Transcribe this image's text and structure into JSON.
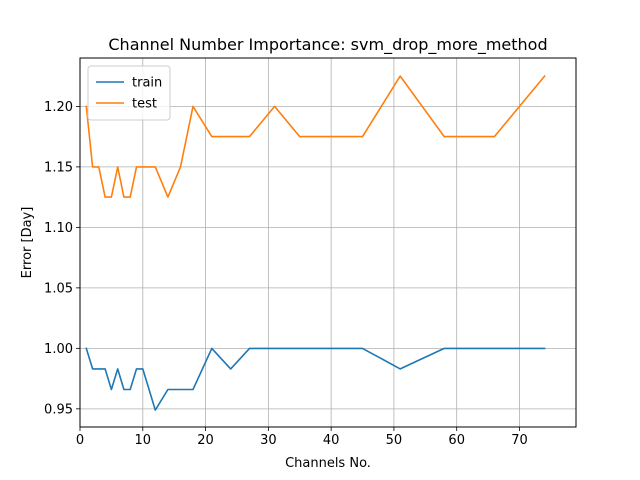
{
  "chart_data": {
    "type": "line",
    "title": "Channel Number Importance: svm_drop_more_method",
    "xlabel": "Channels No.",
    "ylabel": "Error [Day]",
    "xlim": [
      0,
      79
    ],
    "ylim": [
      0.935,
      1.24
    ],
    "xticks": [
      0,
      10,
      20,
      30,
      40,
      50,
      60,
      70
    ],
    "yticks": [
      0.95,
      1.0,
      1.05,
      1.1,
      1.15,
      1.2
    ],
    "ytick_labels": [
      "0.95",
      "1.00",
      "1.05",
      "1.10",
      "1.15",
      "1.20"
    ],
    "grid": true,
    "legend_position": "upper-left",
    "series": [
      {
        "name": "train",
        "color": "#1f77b4",
        "x": [
          1,
          2,
          3,
          4,
          5,
          6,
          7,
          8,
          9,
          10,
          12,
          14,
          16,
          18,
          21,
          24,
          27,
          31,
          35,
          45,
          51,
          58,
          66,
          74
        ],
        "y": [
          1.0,
          0.983,
          0.983,
          0.983,
          0.966,
          0.983,
          0.966,
          0.966,
          0.983,
          0.983,
          0.949,
          0.966,
          0.966,
          0.966,
          1.0,
          0.983,
          1.0,
          1.0,
          1.0,
          1.0,
          0.983,
          1.0,
          1.0,
          1.0
        ]
      },
      {
        "name": "test",
        "color": "#ff7f0e",
        "x": [
          1,
          2,
          3,
          4,
          5,
          6,
          7,
          8,
          9,
          10,
          12,
          14,
          16,
          18,
          21,
          24,
          27,
          31,
          35,
          45,
          51,
          58,
          66,
          74
        ],
        "y": [
          1.2,
          1.15,
          1.15,
          1.125,
          1.125,
          1.15,
          1.125,
          1.125,
          1.15,
          1.15,
          1.15,
          1.125,
          1.15,
          1.2,
          1.175,
          1.175,
          1.175,
          1.2,
          1.175,
          1.175,
          1.225,
          1.175,
          1.175,
          1.225
        ]
      }
    ]
  }
}
